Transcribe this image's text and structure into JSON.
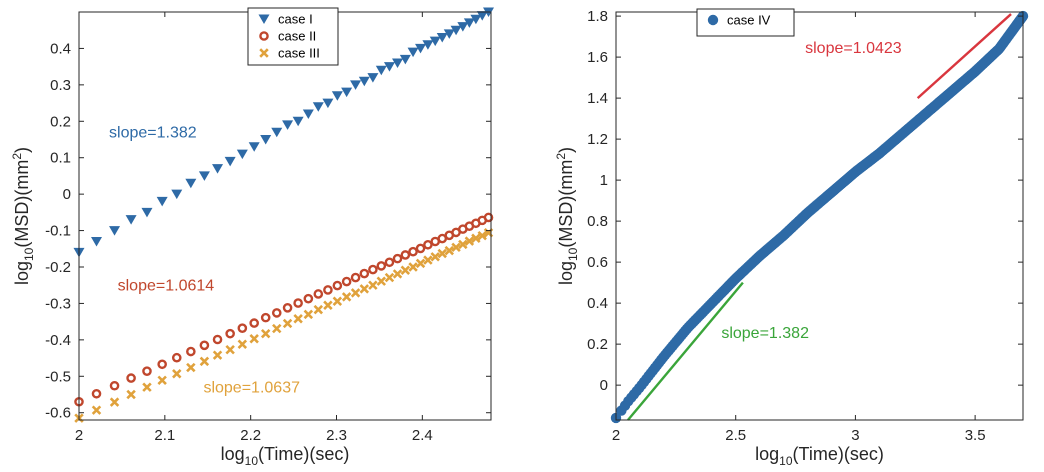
{
  "chart_data": [
    {
      "type": "scatter",
      "title": "",
      "xlabel": {
        "prefix": "log",
        "sub": "10",
        "suffix": "(Time)(sec)"
      },
      "ylabel": {
        "prefix": "log",
        "sub": "10",
        "mid": "(MSD)(mm",
        "sup": "2",
        "suffix": ")"
      },
      "xlim": [
        2.0,
        2.48
      ],
      "ylim": [
        -0.62,
        0.5
      ],
      "xticks": [
        2,
        2.1,
        2.2,
        2.3,
        2.4
      ],
      "xtick_labels": [
        "2",
        "2.1",
        "2.2",
        "2.3",
        "2.4"
      ],
      "yticks": [
        -0.6,
        -0.5,
        -0.4,
        -0.3,
        -0.2,
        -0.1,
        0,
        0.1,
        0.2,
        0.3,
        0.4
      ],
      "ytick_labels": [
        "-0.6",
        "-0.5",
        "-0.4",
        "-0.3",
        "-0.2",
        "-0.1",
        "0",
        "0.1",
        "0.2",
        "0.3",
        "0.4"
      ],
      "grid": false,
      "legend_position": "top-center",
      "series": [
        {
          "name": "case I",
          "marker": "triangle-down",
          "color": "#2e6aa6",
          "x": [
            2.0,
            2.0204,
            2.0414,
            2.0607,
            2.0792,
            2.0969,
            2.1139,
            2.1303,
            2.1461,
            2.1614,
            2.1761,
            2.1903,
            2.2041,
            2.2175,
            2.2304,
            2.243,
            2.2553,
            2.2672,
            2.2788,
            2.29,
            2.301,
            2.3118,
            2.3222,
            2.3324,
            2.3424,
            2.3522,
            2.3617,
            2.3711,
            2.3802,
            2.3892,
            2.3979,
            2.4065,
            2.415,
            2.4232,
            2.4314,
            2.4393,
            2.4472,
            2.4548,
            2.4624,
            2.4698,
            2.4771
          ],
          "y": [
            -0.16,
            -0.13,
            -0.1,
            -0.07,
            -0.05,
            -0.02,
            0.0,
            0.03,
            0.05,
            0.07,
            0.09,
            0.11,
            0.13,
            0.15,
            0.17,
            0.19,
            0.2,
            0.22,
            0.24,
            0.25,
            0.27,
            0.28,
            0.3,
            0.31,
            0.32,
            0.34,
            0.35,
            0.36,
            0.37,
            0.39,
            0.4,
            0.41,
            0.42,
            0.43,
            0.44,
            0.45,
            0.46,
            0.47,
            0.48,
            0.49,
            0.5
          ]
        },
        {
          "name": "case II",
          "marker": "circle-open",
          "color": "#c0472d",
          "x": [
            2.0,
            2.0204,
            2.0414,
            2.0607,
            2.0792,
            2.0969,
            2.1139,
            2.1303,
            2.1461,
            2.1614,
            2.1761,
            2.1903,
            2.2041,
            2.2175,
            2.2304,
            2.243,
            2.2553,
            2.2672,
            2.2788,
            2.29,
            2.301,
            2.3118,
            2.3222,
            2.3324,
            2.3424,
            2.3522,
            2.3617,
            2.3711,
            2.3802,
            2.3892,
            2.3979,
            2.4065,
            2.415,
            2.4232,
            2.4314,
            2.4393,
            2.4472,
            2.4548,
            2.4624,
            2.4698,
            2.4771
          ],
          "y": [
            -0.57,
            -0.548,
            -0.526,
            -0.505,
            -0.486,
            -0.467,
            -0.449,
            -0.432,
            -0.415,
            -0.399,
            -0.383,
            -0.368,
            -0.354,
            -0.339,
            -0.326,
            -0.312,
            -0.299,
            -0.287,
            -0.274,
            -0.263,
            -0.251,
            -0.24,
            -0.229,
            -0.218,
            -0.207,
            -0.197,
            -0.187,
            -0.177,
            -0.167,
            -0.158,
            -0.149,
            -0.139,
            -0.13,
            -0.122,
            -0.113,
            -0.105,
            -0.096,
            -0.088,
            -0.08,
            -0.072,
            -0.064
          ]
        },
        {
          "name": "case III",
          "marker": "x",
          "color": "#e0a23c",
          "x": [
            2.0,
            2.0204,
            2.0414,
            2.0607,
            2.0792,
            2.0969,
            2.1139,
            2.1303,
            2.1461,
            2.1614,
            2.1761,
            2.1903,
            2.2041,
            2.2175,
            2.2304,
            2.243,
            2.2553,
            2.2672,
            2.2788,
            2.29,
            2.301,
            2.3118,
            2.3222,
            2.3324,
            2.3424,
            2.3522,
            2.3617,
            2.3711,
            2.3802,
            2.3892,
            2.3979,
            2.4065,
            2.415,
            2.4232,
            2.4314,
            2.4393,
            2.4472,
            2.4548,
            2.4624,
            2.4698,
            2.4771
          ],
          "y": [
            -0.615,
            -0.593,
            -0.571,
            -0.55,
            -0.53,
            -0.511,
            -0.493,
            -0.476,
            -0.459,
            -0.442,
            -0.427,
            -0.412,
            -0.397,
            -0.383,
            -0.369,
            -0.355,
            -0.342,
            -0.33,
            -0.317,
            -0.305,
            -0.294,
            -0.282,
            -0.271,
            -0.26,
            -0.25,
            -0.239,
            -0.229,
            -0.219,
            -0.209,
            -0.2,
            -0.19,
            -0.181,
            -0.172,
            -0.163,
            -0.155,
            -0.146,
            -0.138,
            -0.129,
            -0.121,
            -0.114,
            -0.106
          ]
        }
      ],
      "annotations": [
        {
          "text": "slope=1.382",
          "color": "#2e6aa6",
          "x": 2.035,
          "y": 0.155
        },
        {
          "text": "slope=1.0614",
          "color": "#c0472d",
          "x": 2.045,
          "y": -0.265
        },
        {
          "text": "slope=1.0637",
          "color": "#e0a23c",
          "x": 2.145,
          "y": -0.545
        }
      ]
    },
    {
      "type": "scatter",
      "title": "",
      "xlabel": {
        "prefix": "log",
        "sub": "10",
        "suffix": "(Time)(sec)"
      },
      "ylabel": {
        "prefix": "log",
        "sub": "10",
        "mid": "(MSD)(mm",
        "sup": "2",
        "suffix": ")"
      },
      "xlim": [
        2.0,
        3.7
      ],
      "ylim": [
        -0.17,
        1.82
      ],
      "xticks": [
        2,
        2.5,
        3,
        3.5
      ],
      "xtick_labels": [
        "2",
        "2.5",
        "3",
        "3.5"
      ],
      "yticks": [
        0,
        0.2,
        0.4,
        0.6,
        0.8,
        1,
        1.2,
        1.4,
        1.6,
        1.8
      ],
      "ytick_labels": [
        "0",
        "0.2",
        "0.4",
        "0.6",
        "0.8",
        "1",
        "1.2",
        "1.4",
        "1.6",
        "1.8"
      ],
      "grid": false,
      "legend_position": "top-center",
      "series": [
        {
          "name": "case IV",
          "marker": "circle-filled",
          "color": "#2e6aa6",
          "x_start": 2.0,
          "x_end": 3.7,
          "points": 320,
          "y_at": {
            "x": [
              2.0,
              2.05,
              2.1,
              2.2,
              2.3,
              2.4,
              2.5,
              2.6,
              2.7,
              2.8,
              2.9,
              3.0,
              3.1,
              3.2,
              3.3,
              3.4,
              3.5,
              3.6,
              3.7
            ],
            "y": [
              -0.16,
              -0.08,
              -0.01,
              0.14,
              0.28,
              0.4,
              0.52,
              0.63,
              0.73,
              0.84,
              0.94,
              1.04,
              1.13,
              1.23,
              1.33,
              1.43,
              1.53,
              1.64,
              1.8
            ]
          }
        }
      ],
      "fit_lines": [
        {
          "color": "#3aa53a",
          "x": [
            2.05,
            2.53
          ],
          "y": [
            -0.17,
            0.5
          ]
        },
        {
          "color": "#d9363e",
          "x": [
            3.26,
            3.65
          ],
          "y": [
            1.4,
            1.81
          ]
        }
      ],
      "annotations": [
        {
          "text": "slope=1.0423",
          "color": "#d9363e",
          "x": 2.79,
          "y": 1.62
        },
        {
          "text": "slope=1.382",
          "color": "#3aa53a",
          "x": 2.44,
          "y": 0.23
        }
      ]
    }
  ]
}
